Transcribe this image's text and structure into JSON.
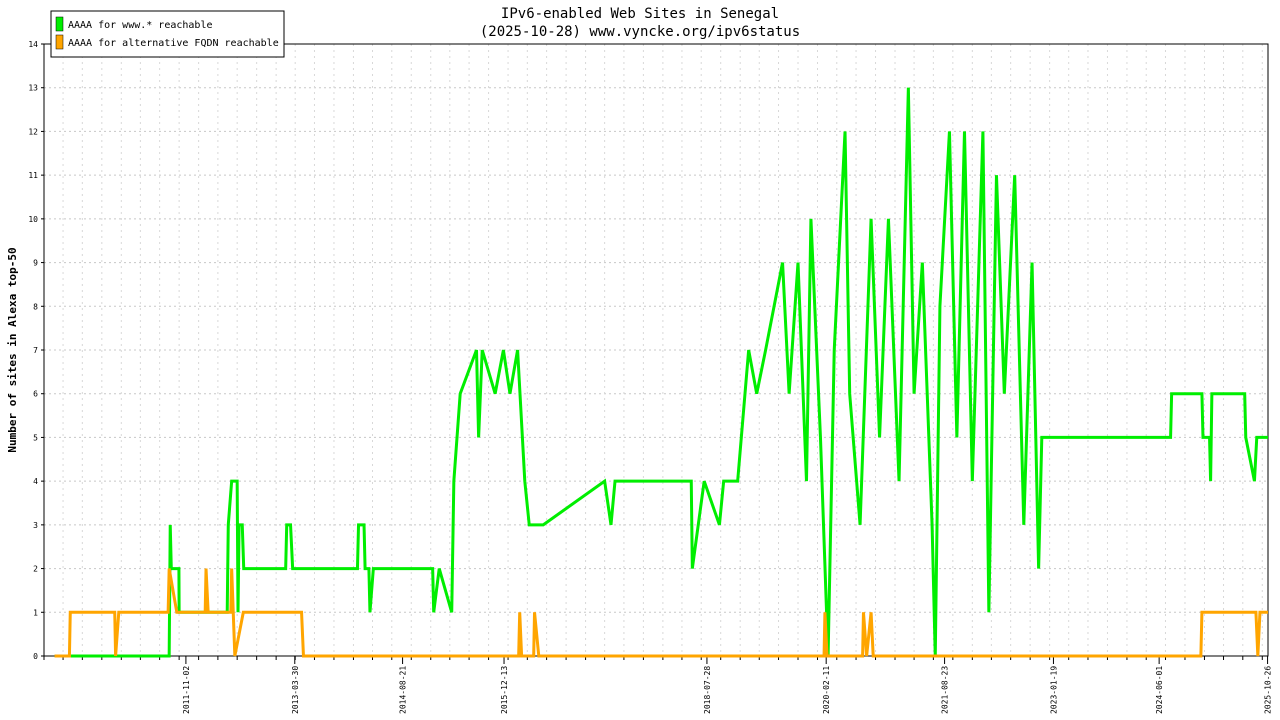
{
  "chart_data": {
    "type": "line",
    "title": "IPv6-enabled Web Sites in Senegal",
    "subtitle": "(2025-10-28) www.vyncke.org/ipv6status",
    "ylabel": "Number of sites in Alexa top-50",
    "xlabel": "",
    "ylim": [
      0,
      14
    ],
    "yticks": [
      0,
      1,
      2,
      3,
      4,
      5,
      6,
      7,
      8,
      9,
      10,
      11,
      12,
      13,
      14
    ],
    "xlim": [
      "2010-01-01",
      "2025-10-28"
    ],
    "xtick_labels": [
      "2011-11-02",
      "2013-03-30",
      "2014-08-21",
      "2015-12-13",
      "2018-07-28",
      "2020-02-11",
      "2021-08-23",
      "2023-01-19",
      "2024-06-01",
      "2025-10-26"
    ],
    "grid": true,
    "legend_position": "top-left",
    "series": [
      {
        "name": "AAAA for www.* reachable",
        "color": "#00ee00",
        "points": [
          [
            "2010-02-20",
            0
          ],
          [
            "2011-08-15",
            0
          ],
          [
            "2011-08-20",
            3
          ],
          [
            "2011-08-25",
            2
          ],
          [
            "2011-09-30",
            2
          ],
          [
            "2011-10-01",
            1
          ],
          [
            "2012-05-15",
            1
          ],
          [
            "2012-05-20",
            3
          ],
          [
            "2012-06-05",
            4
          ],
          [
            "2012-07-01",
            4
          ],
          [
            "2012-07-05",
            1
          ],
          [
            "2012-07-10",
            3
          ],
          [
            "2012-07-25",
            3
          ],
          [
            "2012-08-01",
            2
          ],
          [
            "2013-02-15",
            2
          ],
          [
            "2013-02-20",
            3
          ],
          [
            "2013-03-10",
            3
          ],
          [
            "2013-03-20",
            2
          ],
          [
            "2014-01-20",
            2
          ],
          [
            "2014-01-25",
            3
          ],
          [
            "2014-02-20",
            3
          ],
          [
            "2014-02-25",
            2
          ],
          [
            "2014-03-15",
            2
          ],
          [
            "2014-03-20",
            1
          ],
          [
            "2014-04-05",
            2
          ],
          [
            "2015-01-10",
            2
          ],
          [
            "2015-01-15",
            1
          ],
          [
            "2015-02-10",
            2
          ],
          [
            "2015-04-10",
            1
          ],
          [
            "2015-04-20",
            4
          ],
          [
            "2015-05-20",
            6
          ],
          [
            "2015-08-05",
            7
          ],
          [
            "2015-08-15",
            5
          ],
          [
            "2015-09-01",
            7
          ],
          [
            "2015-11-01",
            6
          ],
          [
            "2015-12-10",
            7
          ],
          [
            "2016-01-10",
            6
          ],
          [
            "2016-02-15",
            7
          ],
          [
            "2016-03-20",
            4
          ],
          [
            "2016-04-10",
            3
          ],
          [
            "2016-06-15",
            3
          ],
          [
            "2017-04-01",
            4
          ],
          [
            "2017-05-01",
            3
          ],
          [
            "2017-05-20",
            4
          ],
          [
            "2018-05-15",
            4
          ],
          [
            "2018-05-20",
            2
          ],
          [
            "2018-07-15",
            4
          ],
          [
            "2018-09-25",
            3
          ],
          [
            "2018-10-15",
            4
          ],
          [
            "2018-11-10",
            4
          ],
          [
            "2018-12-20",
            4
          ],
          [
            "2019-02-10",
            7
          ],
          [
            "2019-03-20",
            6
          ],
          [
            "2019-05-01",
            7
          ],
          [
            "2019-06-10",
            8
          ],
          [
            "2019-07-20",
            9
          ],
          [
            "2019-08-20",
            6
          ],
          [
            "2019-10-01",
            9
          ],
          [
            "2019-11-10",
            4
          ],
          [
            "2019-12-01",
            10
          ],
          [
            "2020-01-15",
            5
          ],
          [
            "2020-02-20",
            0
          ],
          [
            "2020-03-20",
            7
          ],
          [
            "2020-05-10",
            12
          ],
          [
            "2020-06-01",
            6
          ],
          [
            "2020-07-20",
            3
          ],
          [
            "2020-09-10",
            10
          ],
          [
            "2020-10-20",
            5
          ],
          [
            "2020-12-01",
            10
          ],
          [
            "2021-01-20",
            4
          ],
          [
            "2021-03-05",
            13
          ],
          [
            "2021-04-01",
            6
          ],
          [
            "2021-05-10",
            9
          ],
          [
            "2021-06-25",
            3
          ],
          [
            "2021-07-10",
            0
          ],
          [
            "2021-08-01",
            8
          ],
          [
            "2021-09-15",
            12
          ],
          [
            "2021-10-20",
            5
          ],
          [
            "2021-11-25",
            12
          ],
          [
            "2022-01-01",
            4
          ],
          [
            "2022-02-20",
            12
          ],
          [
            "2022-03-20",
            1
          ],
          [
            "2022-04-25",
            11
          ],
          [
            "2022-06-01",
            6
          ],
          [
            "2022-07-20",
            11
          ],
          [
            "2022-09-01",
            3
          ],
          [
            "2022-10-10",
            9
          ],
          [
            "2022-11-10",
            2
          ],
          [
            "2022-11-25",
            5
          ],
          [
            "2024-07-25",
            5
          ],
          [
            "2024-07-30",
            6
          ],
          [
            "2024-12-20",
            6
          ],
          [
            "2024-12-25",
            5
          ],
          [
            "2025-01-25",
            5
          ],
          [
            "2025-01-30",
            4
          ],
          [
            "2025-02-05",
            6
          ],
          [
            "2025-07-10",
            6
          ],
          [
            "2025-07-15",
            5
          ],
          [
            "2025-08-25",
            4
          ],
          [
            "2025-09-05",
            5
          ],
          [
            "2025-10-28",
            5
          ]
        ]
      },
      {
        "name": "AAAA for alternative FQDN reachable",
        "color": "#ffa500",
        "points": [
          [
            "2010-02-20",
            0
          ],
          [
            "2010-05-01",
            0
          ],
          [
            "2010-05-05",
            1
          ],
          [
            "2010-12-01",
            1
          ],
          [
            "2010-12-05",
            0
          ],
          [
            "2010-12-20",
            1
          ],
          [
            "2011-08-10",
            1
          ],
          [
            "2011-08-15",
            2
          ],
          [
            "2011-09-20",
            1
          ],
          [
            "2012-02-01",
            1
          ],
          [
            "2012-02-05",
            2
          ],
          [
            "2012-02-15",
            1
          ],
          [
            "2012-06-01",
            1
          ],
          [
            "2012-06-05",
            2
          ],
          [
            "2012-06-20",
            0
          ],
          [
            "2012-07-30",
            1
          ],
          [
            "2013-05-01",
            1
          ],
          [
            "2013-05-10",
            0
          ],
          [
            "2016-02-20",
            0
          ],
          [
            "2016-02-25",
            1
          ],
          [
            "2016-03-05",
            0
          ],
          [
            "2016-05-01",
            0
          ],
          [
            "2016-05-05",
            1
          ],
          [
            "2016-05-25",
            0
          ],
          [
            "2020-02-01",
            0
          ],
          [
            "2020-02-05",
            1
          ],
          [
            "2020-02-15",
            0
          ],
          [
            "2020-08-01",
            0
          ],
          [
            "2020-08-05",
            1
          ],
          [
            "2020-08-20",
            0
          ],
          [
            "2020-09-10",
            1
          ],
          [
            "2020-09-20",
            0
          ],
          [
            "2024-12-15",
            0
          ],
          [
            "2024-12-20",
            1
          ],
          [
            "2025-09-01",
            1
          ],
          [
            "2025-09-10",
            0
          ],
          [
            "2025-09-20",
            1
          ],
          [
            "2025-10-28",
            1
          ]
        ]
      }
    ]
  }
}
